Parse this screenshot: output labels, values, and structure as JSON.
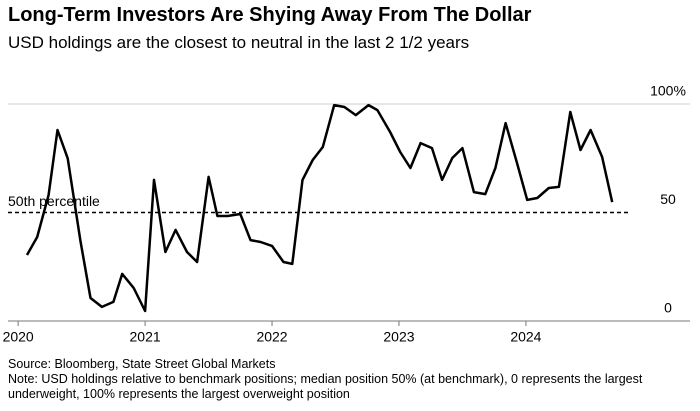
{
  "chart_data": {
    "type": "line",
    "title": "Long-Term Investors Are Shying Away From The Dollar",
    "subtitle": "USD holdings are the closest to neutral in the last 2 1/2 years",
    "source": "Source: Bloomberg, State Street Global Markets",
    "note": "Note: USD holdings relative to benchmark positions; median position 50% (at benchmark), 0 represents the largest underweight, 100% represents the largest overweight position",
    "reference_line": {
      "value": 50,
      "label": "50th percentile"
    },
    "xlim": [
      2019.92,
      2024.82
    ],
    "xticks": [
      2020,
      2021,
      2022,
      2023,
      2024
    ],
    "ylim": [
      0,
      100
    ],
    "yticks": [
      0,
      50,
      {
        "value": 100,
        "label": "100%"
      }
    ],
    "series": [
      {
        "color": "#000000",
        "x": [
          2020.07,
          2020.15,
          2020.24,
          2020.31,
          2020.39,
          2020.49,
          2020.57,
          2020.66,
          2020.75,
          2020.82,
          2020.91,
          2021.0,
          2021.07,
          2021.16,
          2021.24,
          2021.33,
          2021.41,
          2021.5,
          2021.57,
          2021.65,
          2021.75,
          2021.83,
          2021.91,
          2022.0,
          2022.09,
          2022.16,
          2022.24,
          2022.32,
          2022.4,
          2022.49,
          2022.57,
          2022.66,
          2022.76,
          2022.83,
          2022.93,
          2023.01,
          2023.09,
          2023.17,
          2023.26,
          2023.34,
          2023.42,
          2023.5,
          2023.59,
          2023.68,
          2023.76,
          2023.84,
          2023.93,
          2024.01,
          2024.09,
          2024.18,
          2024.26,
          2024.35,
          2024.43,
          2024.51,
          2024.6,
          2024.68
        ],
        "values": [
          30.4,
          38.7,
          58.1,
          88,
          75,
          37,
          10.6,
          6.5,
          8.8,
          21.7,
          15.2,
          4.6,
          65,
          31.8,
          42,
          31.8,
          27.2,
          66.4,
          48.4,
          48.4,
          49.3,
          37.3,
          36.4,
          34.6,
          27.2,
          26.3,
          65,
          74.2,
          80.2,
          99.5,
          98.6,
          94.9,
          99.5,
          97.2,
          87.1,
          77.9,
          70.5,
          82,
          79.7,
          65,
          75.1,
          79.7,
          59.4,
          58.5,
          70.5,
          91.2,
          72.8,
          55.8,
          56.7,
          61.3,
          61.8,
          96.3,
          78.8,
          88,
          75.6,
          54.8
        ]
      }
    ]
  }
}
